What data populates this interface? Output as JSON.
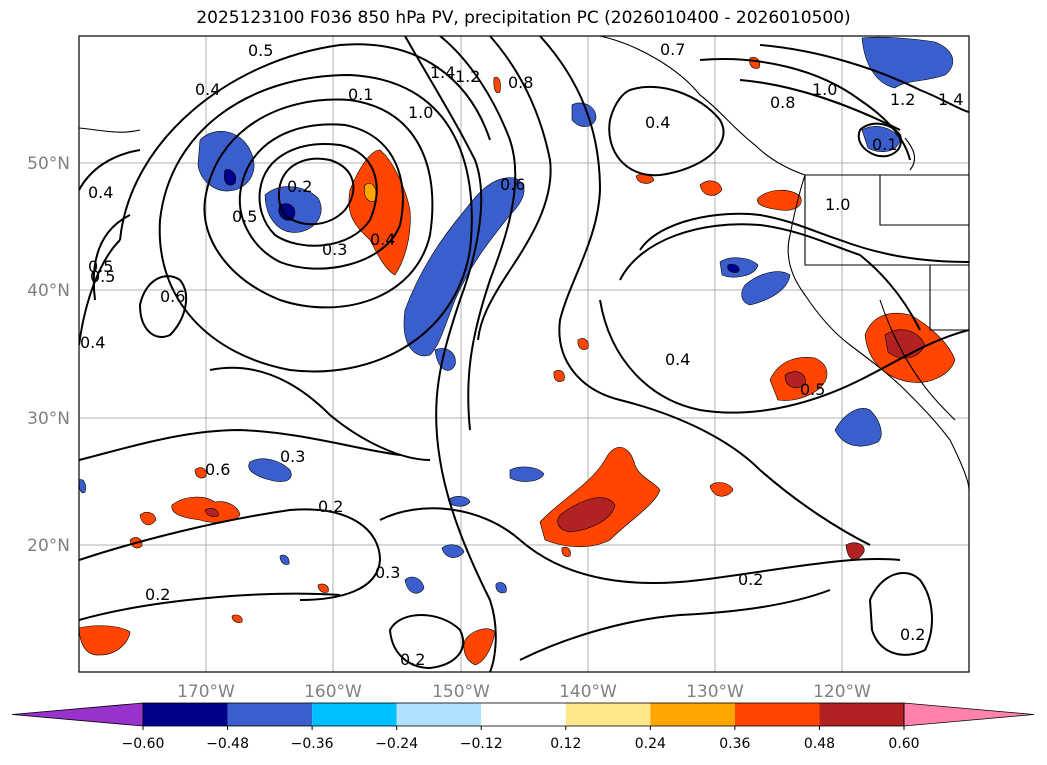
{
  "title": "2025123100 F036 850 hPa PV, precipitation PC (2026010400 - 2026010500)",
  "lat_labels": [
    "50°N",
    "40°N",
    "30°N",
    "20°N"
  ],
  "lon_labels": [
    "170°W",
    "160°W",
    "150°W",
    "140°W",
    "130°W",
    "120°W"
  ],
  "contour_labels": [
    "0.5",
    "0.4",
    "0.4",
    "0.5",
    "0.6",
    "0.4",
    "0.2",
    "0.5",
    "0.3",
    "0.4",
    "0.1",
    "1.0",
    "1.4",
    "1.2",
    "0.8",
    "0.6",
    "0.4",
    "0.7",
    "1.0",
    "0.8",
    "1.2",
    "1.4",
    "1.0",
    "0.4",
    "0.5",
    "0.3",
    "0.2",
    "0.3",
    "0.2",
    "0.2",
    "0.2",
    "0.2",
    "0.1",
    "0.5",
    "0.6"
  ],
  "colorbar": {
    "ticks": [
      "−0.60",
      "−0.48",
      "−0.36",
      "−0.24",
      "−0.12",
      "0.12",
      "0.24",
      "0.36",
      "0.48",
      "0.60"
    ],
    "colors": [
      "#9932CC",
      "#00008B",
      "#3A5FCD",
      "#00BFFF",
      "#B0E2FF",
      "#FFFFFF",
      "#FFE88C",
      "#FFA500",
      "#FF4500",
      "#B22222",
      "#FF82AB"
    ]
  },
  "colors": {
    "negative_strong": "#00008B",
    "negative": "#3A5FCD",
    "negative_light": "#00BFFF",
    "positive_light": "#FFA500",
    "positive": "#FF4500",
    "positive_strong": "#B22222",
    "edge_yellow": "#FFE88C"
  }
}
